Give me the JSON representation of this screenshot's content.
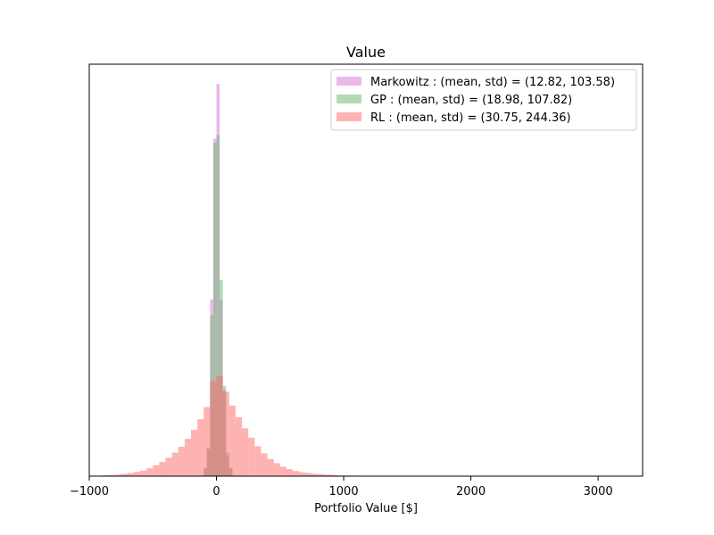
{
  "chart_data": {
    "type": "histogram",
    "title": "Value",
    "xlabel": "Portfolio Value [$]",
    "ylabel": "",
    "xlim": [
      -1000,
      3350
    ],
    "ylim": [
      0,
      1
    ],
    "x_ticks": [
      -1000,
      0,
      1000,
      2000,
      3000
    ],
    "x_tick_labels": [
      "−1000",
      "0",
      "1000",
      "2000",
      "3000"
    ],
    "y_ticks_shown": false,
    "grid": false,
    "legend_position": "top-right",
    "series": [
      {
        "name": "Markowitz : (mean, std) = (12.82, 103.58)",
        "color": "#dd88dd",
        "opacity": 0.6,
        "bins": [
          {
            "x0": -100,
            "x1": -75,
            "h": 0.02
          },
          {
            "x0": -75,
            "x1": -50,
            "h": 0.07
          },
          {
            "x0": -50,
            "x1": -25,
            "h": 0.45
          },
          {
            "x0": -25,
            "x1": 0,
            "h": 0.86
          },
          {
            "x0": 0,
            "x1": 25,
            "h": 1.0
          },
          {
            "x0": 25,
            "x1": 50,
            "h": 0.45
          },
          {
            "x0": 50,
            "x1": 75,
            "h": 0.22
          },
          {
            "x0": 75,
            "x1": 100,
            "h": 0.05
          },
          {
            "x0": 100,
            "x1": 125,
            "h": 0.02
          }
        ]
      },
      {
        "name": "GP : (mean, std) = (18.98, 107.82)",
        "color": "#77bb77",
        "opacity": 0.55,
        "bins": [
          {
            "x0": -100,
            "x1": -75,
            "h": 0.02
          },
          {
            "x0": -75,
            "x1": -50,
            "h": 0.07
          },
          {
            "x0": -50,
            "x1": -25,
            "h": 0.41
          },
          {
            "x0": -25,
            "x1": 0,
            "h": 0.85
          },
          {
            "x0": 0,
            "x1": 25,
            "h": 0.87
          },
          {
            "x0": 25,
            "x1": 50,
            "h": 0.5
          },
          {
            "x0": 50,
            "x1": 75,
            "h": 0.23
          },
          {
            "x0": 75,
            "x1": 100,
            "h": 0.06
          },
          {
            "x0": 100,
            "x1": 125,
            "h": 0.02
          }
        ]
      },
      {
        "name": "RL : (mean, std) = (30.75, 244.36)",
        "color": "#ff6666",
        "opacity": 0.5,
        "bins": [
          {
            "x0": -900,
            "x1": -850,
            "h": 0.002
          },
          {
            "x0": -850,
            "x1": -800,
            "h": 0.003
          },
          {
            "x0": -800,
            "x1": -750,
            "h": 0.004
          },
          {
            "x0": -750,
            "x1": -700,
            "h": 0.006
          },
          {
            "x0": -700,
            "x1": -650,
            "h": 0.008
          },
          {
            "x0": -650,
            "x1": -600,
            "h": 0.011
          },
          {
            "x0": -600,
            "x1": -550,
            "h": 0.014
          },
          {
            "x0": -550,
            "x1": -500,
            "h": 0.02
          },
          {
            "x0": -500,
            "x1": -450,
            "h": 0.028
          },
          {
            "x0": -450,
            "x1": -400,
            "h": 0.036
          },
          {
            "x0": -400,
            "x1": -350,
            "h": 0.047
          },
          {
            "x0": -350,
            "x1": -300,
            "h": 0.06
          },
          {
            "x0": -300,
            "x1": -250,
            "h": 0.075
          },
          {
            "x0": -250,
            "x1": -200,
            "h": 0.095
          },
          {
            "x0": -200,
            "x1": -150,
            "h": 0.118
          },
          {
            "x0": -150,
            "x1": -100,
            "h": 0.145
          },
          {
            "x0": -100,
            "x1": -50,
            "h": 0.176
          },
          {
            "x0": -50,
            "x1": 0,
            "h": 0.242
          },
          {
            "x0": 0,
            "x1": 50,
            "h": 0.255
          },
          {
            "x0": 50,
            "x1": 100,
            "h": 0.215
          },
          {
            "x0": 100,
            "x1": 150,
            "h": 0.18
          },
          {
            "x0": 150,
            "x1": 200,
            "h": 0.15
          },
          {
            "x0": 200,
            "x1": 250,
            "h": 0.122
          },
          {
            "x0": 250,
            "x1": 300,
            "h": 0.098
          },
          {
            "x0": 300,
            "x1": 350,
            "h": 0.076
          },
          {
            "x0": 350,
            "x1": 400,
            "h": 0.058
          },
          {
            "x0": 400,
            "x1": 450,
            "h": 0.044
          },
          {
            "x0": 450,
            "x1": 500,
            "h": 0.033
          },
          {
            "x0": 500,
            "x1": 550,
            "h": 0.024
          },
          {
            "x0": 550,
            "x1": 600,
            "h": 0.018
          },
          {
            "x0": 600,
            "x1": 650,
            "h": 0.013
          },
          {
            "x0": 650,
            "x1": 700,
            "h": 0.01
          },
          {
            "x0": 700,
            "x1": 750,
            "h": 0.008
          },
          {
            "x0": 750,
            "x1": 800,
            "h": 0.006
          },
          {
            "x0": 800,
            "x1": 850,
            "h": 0.005
          },
          {
            "x0": 850,
            "x1": 900,
            "h": 0.004
          },
          {
            "x0": 900,
            "x1": 950,
            "h": 0.003
          },
          {
            "x0": 950,
            "x1": 1000,
            "h": 0.002
          },
          {
            "x0": 1000,
            "x1": 1100,
            "h": 0.0015
          },
          {
            "x0": 1100,
            "x1": 1200,
            "h": 0.001
          },
          {
            "x0": 1200,
            "x1": 1300,
            "h": 0.0005
          }
        ]
      }
    ]
  }
}
